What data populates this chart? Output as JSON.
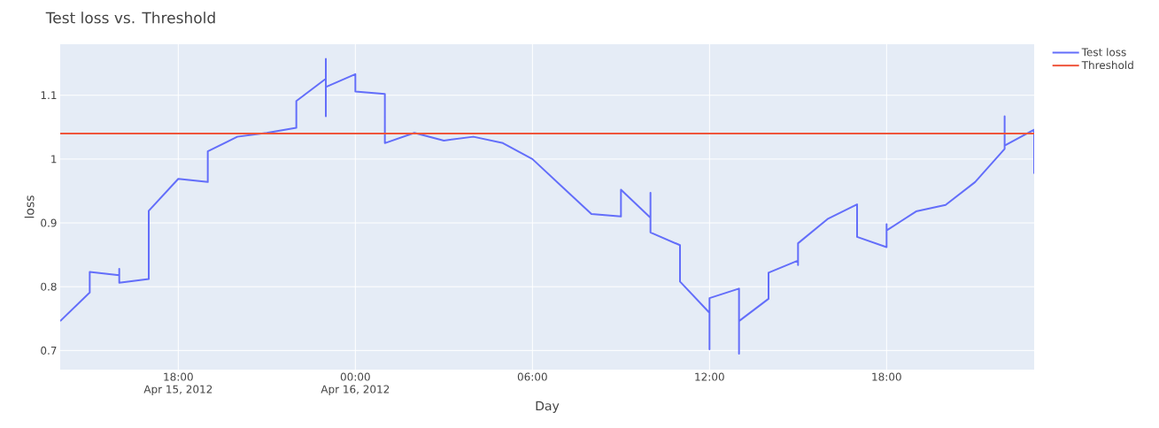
{
  "chart_data": {
    "type": "line",
    "title": "Test loss vs. Threshold",
    "xlabel": "Day",
    "ylabel": "loss",
    "xlim": [
      "2012-04-15T14:00",
      "2012-04-16T23:00"
    ],
    "xticks": [
      {
        "value": "2012-04-15T18:00",
        "label": "18:00\nApr 15, 2012"
      },
      {
        "value": "2012-04-16T00:00",
        "label": "00:00\nApr 16, 2012"
      },
      {
        "value": "2012-04-16T06:00",
        "label": "06:00"
      },
      {
        "value": "2012-04-16T12:00",
        "label": "12:00"
      },
      {
        "value": "2012-04-16T18:00",
        "label": "18:00"
      }
    ],
    "ylim": [
      0.67,
      1.18
    ],
    "yticks": [
      0.7,
      0.8,
      0.9,
      1,
      1.1
    ],
    "grid": true,
    "legend": "top right",
    "marker": "none",
    "line_style": "solid",
    "series": [
      {
        "name": "Test loss",
        "color": "#636efa",
        "x": [
          "2012-04-15T14:00",
          "2012-04-15T15:00",
          "2012-04-15T15:00",
          "2012-04-15T16:00",
          "2012-04-15T16:00",
          "2012-04-15T16:00",
          "2012-04-15T17:00",
          "2012-04-15T17:00",
          "2012-04-15T18:00",
          "2012-04-15T19:00",
          "2012-04-15T19:00",
          "2012-04-15T20:00",
          "2012-04-15T21:00",
          "2012-04-15T22:00",
          "2012-04-15T22:00",
          "2012-04-15T23:00",
          "2012-04-15T23:00",
          "2012-04-15T23:00",
          "2012-04-15T23:00",
          "2012-04-16T00:00",
          "2012-04-16T00:00",
          "2012-04-16T01:00",
          "2012-04-16T01:00",
          "2012-04-16T02:00",
          "2012-04-16T03:00",
          "2012-04-16T04:00",
          "2012-04-16T05:00",
          "2012-04-16T06:00",
          "2012-04-16T07:00",
          "2012-04-16T08:00",
          "2012-04-16T09:00",
          "2012-04-16T09:00",
          "2012-04-16T10:00",
          "2012-04-16T10:00",
          "2012-04-16T10:00",
          "2012-04-16T11:00",
          "2012-04-16T11:00",
          "2012-04-16T12:00",
          "2012-04-16T12:00",
          "2012-04-16T12:00",
          "2012-04-16T13:00",
          "2012-04-16T13:00",
          "2012-04-16T13:00",
          "2012-04-16T14:00",
          "2012-04-16T14:00",
          "2012-04-16T15:00",
          "2012-04-16T15:00",
          "2012-04-16T15:00",
          "2012-04-16T16:00",
          "2012-04-16T17:00",
          "2012-04-16T17:00",
          "2012-04-16T18:00",
          "2012-04-16T18:00",
          "2012-04-16T18:00",
          "2012-04-16T19:00",
          "2012-04-16T20:00",
          "2012-04-16T21:00",
          "2012-04-16T22:00",
          "2012-04-16T22:00",
          "2012-04-16T22:00",
          "2012-04-16T23:00",
          "2012-04-16T23:00"
        ],
        "values": [
          0.746,
          0.791,
          0.823,
          0.818,
          0.828,
          0.806,
          0.812,
          0.919,
          0.969,
          0.964,
          1.012,
          1.035,
          1.041,
          1.049,
          1.091,
          1.126,
          1.157,
          1.067,
          1.113,
          1.133,
          1.106,
          1.102,
          1.025,
          1.041,
          1.029,
          1.035,
          1.025,
          1.0,
          0.957,
          0.914,
          0.91,
          0.952,
          0.908,
          0.947,
          0.885,
          0.865,
          0.808,
          0.759,
          0.702,
          0.782,
          0.797,
          0.695,
          0.746,
          0.781,
          0.822,
          0.841,
          0.834,
          0.868,
          0.906,
          0.929,
          0.878,
          0.862,
          0.898,
          0.888,
          0.918,
          0.928,
          0.964,
          1.016,
          1.067,
          1.021,
          1.046,
          0.977
        ]
      },
      {
        "name": "Threshold",
        "color": "#ef553b",
        "x": [
          "2012-04-15T14:00",
          "2012-04-16T23:00"
        ],
        "values": [
          1.04,
          1.04
        ]
      }
    ]
  }
}
